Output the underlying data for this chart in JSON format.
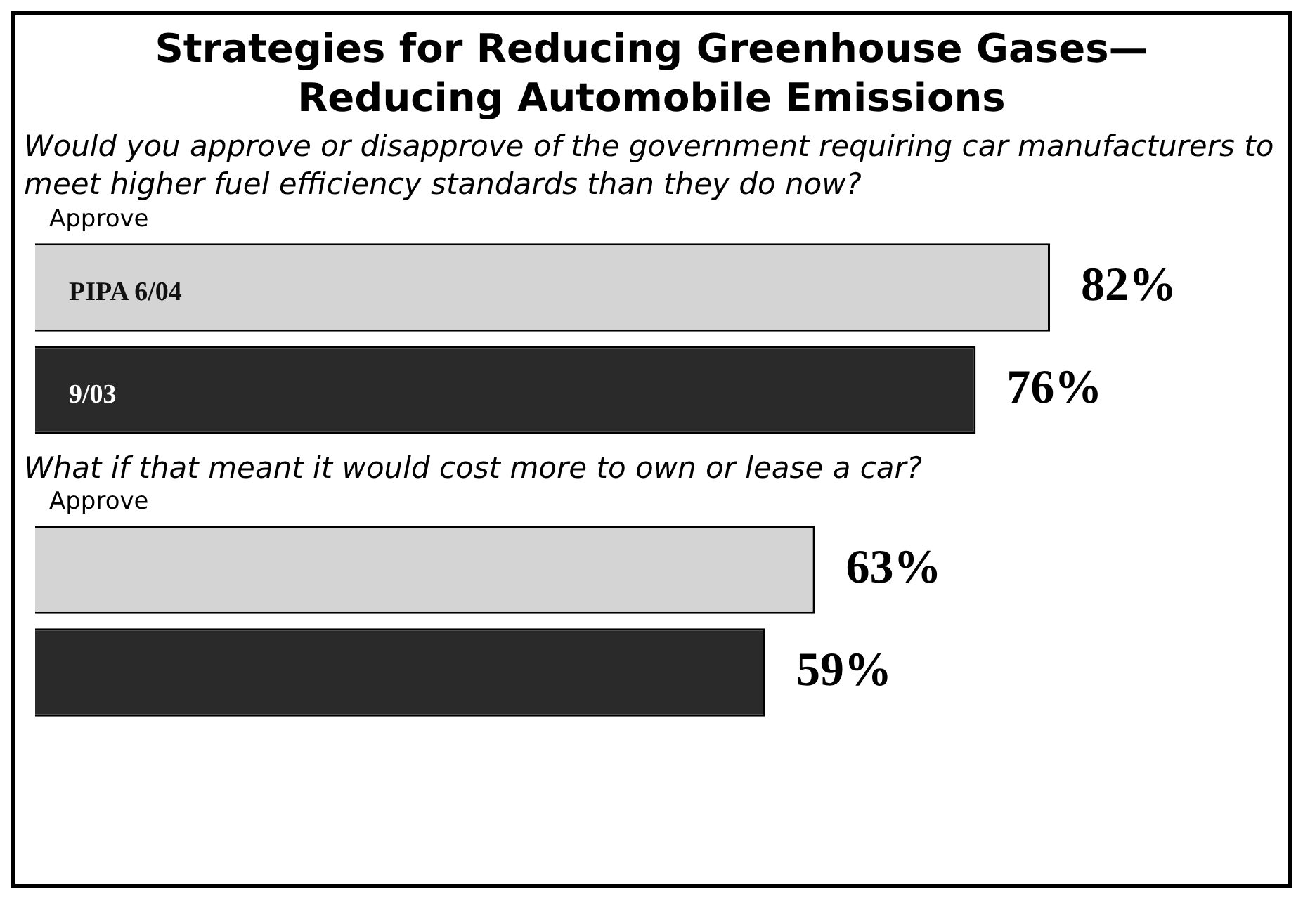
{
  "chart_data": [
    {
      "type": "bar",
      "orientation": "horizontal",
      "title": "Strategies for Reducing Greenhouse Gases—Reducing Automobile Emissions",
      "subtitle": "Would you approve or disapprove of the government requiring car manufacturers to meet higher fuel efficiency standards than they do now?",
      "annotations": [
        "Approve"
      ],
      "categories": [
        "PIPA 6/04",
        "9/03"
      ],
      "values": [
        82,
        76
      ],
      "colors": [
        "#d4d4d4",
        "#2a2a2a"
      ],
      "value_labels": [
        "82%",
        "76%"
      ],
      "legend": false
    },
    {
      "type": "bar",
      "orientation": "horizontal",
      "subtitle": "What if that meant it would cost more to own or lease a car?",
      "annotations": [
        "Approve"
      ],
      "categories": [
        null,
        null
      ],
      "values": [
        63,
        59
      ],
      "colors": [
        "#d4d4d4",
        "#2a2a2a"
      ],
      "value_labels": [
        "63%",
        "59%"
      ],
      "legend": false
    }
  ]
}
